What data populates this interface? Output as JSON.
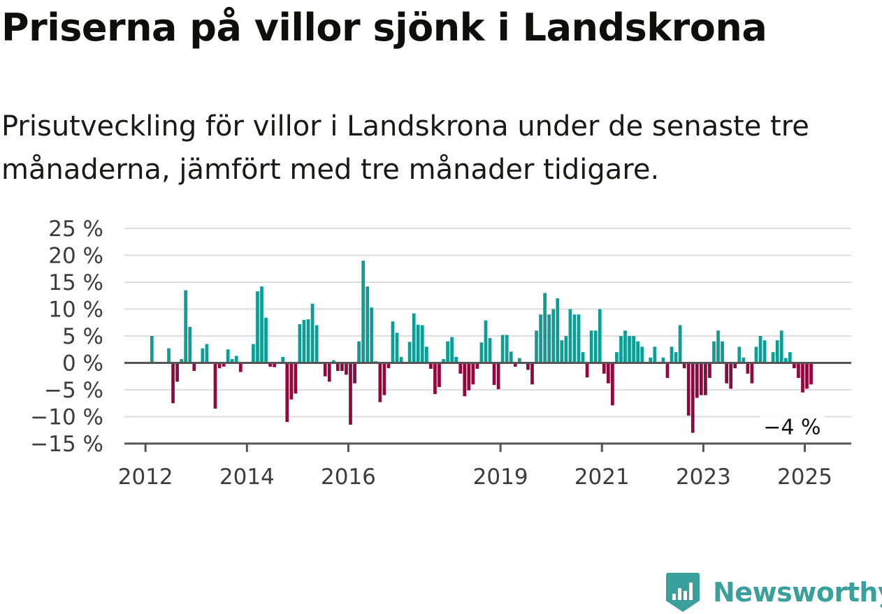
{
  "title": "Priserna på villor sjönk i Landskrona",
  "subtitle": "Prisutveckling för villor i Landskrona under de senaste tre månaderna, jämfört med tre månader tidigare.",
  "colors": {
    "positive": "#0a9e94",
    "negative": "#95063c",
    "grid": "#dddddd",
    "axis": "#555555",
    "brand": "#3aa09c"
  },
  "brand": {
    "name": "Newsworthy",
    "icon": "bar-chart-logo-icon"
  },
  "chart_data": {
    "type": "bar",
    "title": "",
    "xlabel": "",
    "ylabel": "",
    "ylim": [
      -15,
      25
    ],
    "yticks": [
      25,
      20,
      15,
      10,
      5,
      0,
      -5,
      -10,
      -15
    ],
    "ytick_labels": [
      "25 %",
      "20 %",
      "15 %",
      "10 %",
      "5 %",
      "0 %",
      "−5 %",
      "−10 %",
      "−15 %"
    ],
    "xlim": [
      "2011-08",
      "2025-12"
    ],
    "xticks": [
      "2012-01",
      "2014-01",
      "2016-01",
      "2019-01",
      "2021-01",
      "2023-01",
      "2025-01"
    ],
    "xtick_labels": [
      "2012",
      "2014",
      "2016",
      "2019",
      "2021",
      "2023",
      "2025"
    ],
    "grid": true,
    "end_label": "−4 %",
    "series": [
      {
        "start": "2012-01",
        "values": [
          0,
          5,
          0,
          0,
          0,
          2.7,
          -7.5,
          -3.5,
          0.7,
          13.5,
          6.7,
          -1.5,
          0,
          2.7,
          3.5,
          0,
          -8.5,
          -1,
          -0.7,
          2.5,
          0.7,
          1.3,
          -1.7,
          0,
          0,
          3.5,
          13.3,
          14.2,
          8.4,
          -0.7,
          -0.8,
          0,
          1.1,
          -11,
          -6.8,
          -5.7,
          7.2,
          8,
          8.1,
          11,
          7,
          0,
          -2.5,
          -3.5,
          0.5,
          -1.5,
          -1.5,
          -2.2,
          -11.5,
          -3.8,
          4,
          19,
          14.2,
          10.3,
          0.3,
          -7.3,
          -6,
          -1,
          7.7,
          5.6,
          1.1,
          0,
          3.9,
          9.2,
          7.1,
          7,
          3,
          -1.1,
          -5.8,
          -4.5,
          0.7,
          4,
          4.8,
          1.1,
          -2,
          -6.2,
          -5.1,
          -4,
          -1.1,
          3.8,
          7.9,
          4.6,
          -4.1,
          -4.9,
          5.2,
          5.2,
          2.1,
          -0.7,
          0.9,
          0,
          -1.3,
          -4,
          6,
          9,
          13,
          9,
          10,
          12,
          4.2,
          5,
          10,
          9,
          9,
          2,
          -2.7,
          6,
          6,
          10,
          -2,
          -3.8,
          -7.9,
          2,
          5,
          6,
          5,
          5,
          4,
          3,
          0,
          1,
          3,
          0,
          1,
          -2.8,
          3,
          2,
          7,
          -1,
          -9.8,
          -13,
          -6.5,
          -6,
          -6,
          -2.8,
          4,
          6,
          4,
          -3.8,
          -4.8,
          -1,
          3,
          1,
          -2,
          -3.8,
          3,
          5,
          4.2,
          0,
          2,
          4.2,
          6,
          0.9,
          2,
          -1,
          -2.8,
          -5.5,
          -4.8,
          -4
        ]
      }
    ]
  }
}
